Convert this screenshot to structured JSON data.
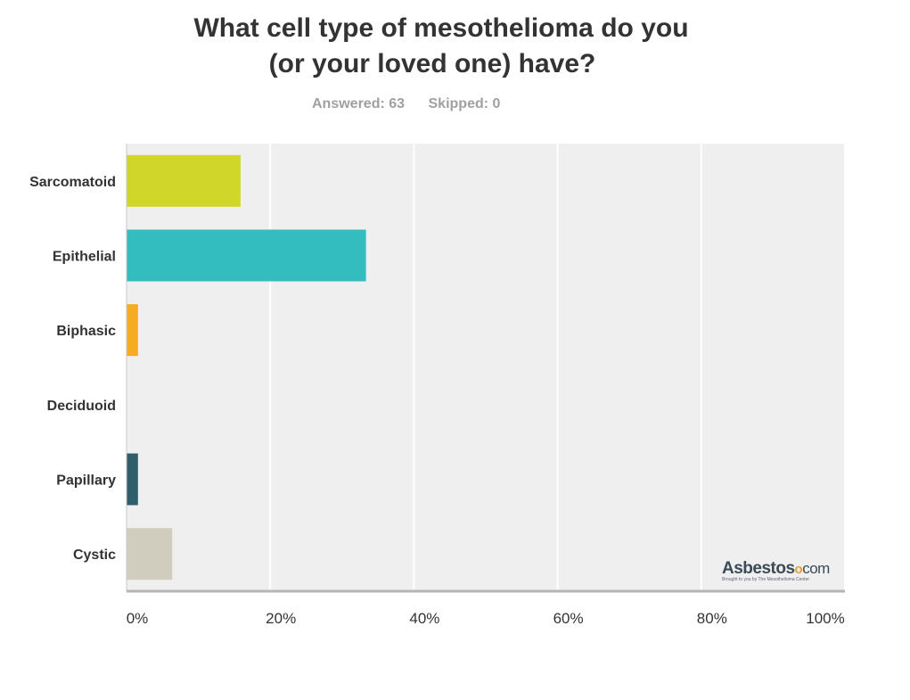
{
  "title_line1": "What cell type of mesothelioma do you",
  "title_line2": "(or your loved one) have?",
  "answered": "Answered: 63",
  "skipped": "Skipped: 0",
  "logo": {
    "word": "Asbestos",
    "dot": "o",
    "suffix": "com",
    "tagline": "Brought to you by The Mesothelioma Center"
  },
  "chart_data": {
    "type": "bar",
    "orientation": "horizontal",
    "categories": [
      "Sarcomatoid",
      "Epithelial",
      "Biphasic",
      "Deciduoid",
      "Papillary",
      "Cystic"
    ],
    "values": [
      15.87,
      33.33,
      1.59,
      0,
      1.59,
      6.35
    ],
    "colors": [
      "#d0d62a",
      "#33bdbf",
      "#f5ac22",
      "#cccccc",
      "#2f5d6a",
      "#d0cdbf"
    ],
    "x_ticks": [
      "0%",
      "20%",
      "40%",
      "60%",
      "80%",
      "100%"
    ],
    "xlim": [
      0,
      100
    ],
    "grid": true,
    "plot_background": "#efefef"
  }
}
